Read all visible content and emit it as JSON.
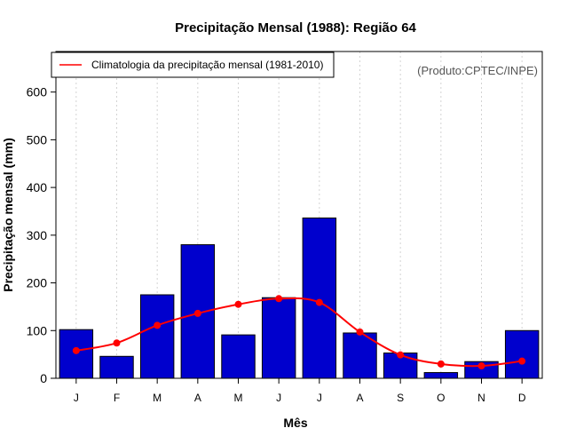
{
  "chart_data": {
    "type": "bar",
    "title": "Precipitação Mensal (1988): Região 64",
    "xlabel": "Mês",
    "ylabel": "Precipitação mensal (mm)",
    "categories": [
      "J",
      "F",
      "M",
      "A",
      "M",
      "J",
      "J",
      "A",
      "S",
      "O",
      "N",
      "D"
    ],
    "ylim": [
      0,
      685
    ],
    "yticks": [
      0,
      100,
      200,
      300,
      400,
      500,
      600
    ],
    "grid": "vertical dotted",
    "legend_position": "top-left",
    "credit": "(Produto:CPTEC/INPE)",
    "series": [
      {
        "name": "Precipitação mensal 1988",
        "type": "bar",
        "color": "#0000CD",
        "values": [
          102,
          46,
          175,
          280,
          91,
          169,
          336,
          95,
          53,
          12,
          35,
          100
        ]
      },
      {
        "name": "Climatologia da precipitação mensal (1981-2010)",
        "type": "line",
        "color": "#FF0000",
        "values": [
          58,
          74,
          111,
          136,
          155,
          167,
          159,
          97,
          49,
          30,
          26,
          36
        ]
      }
    ]
  }
}
